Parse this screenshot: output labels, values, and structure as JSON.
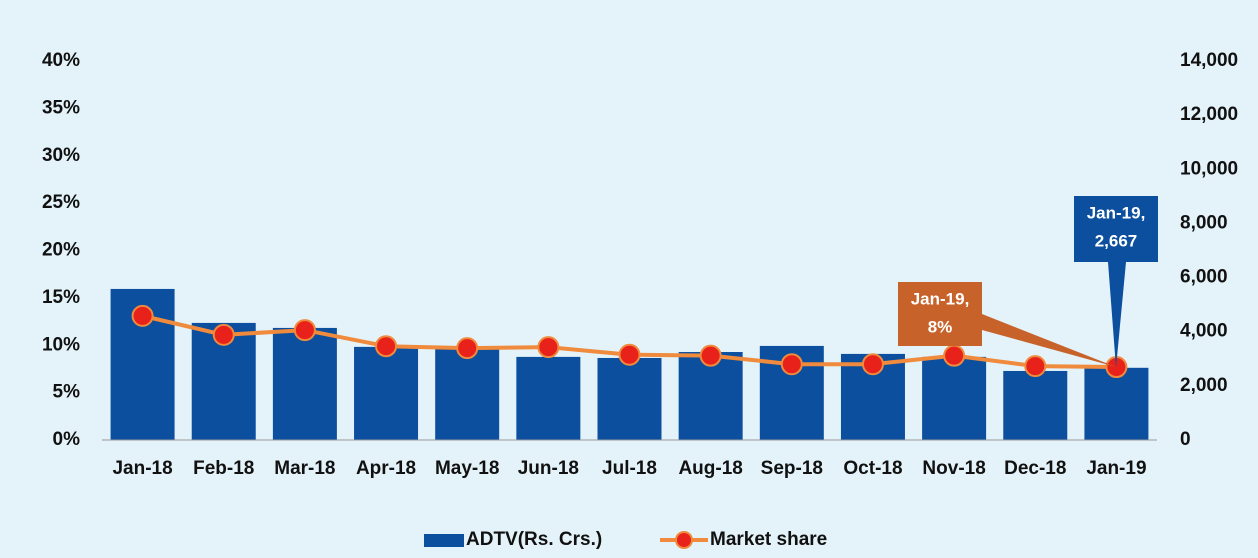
{
  "chart_data": {
    "type": "bar_line",
    "categories": [
      "Jan-18",
      "Feb-18",
      "Mar-18",
      "Apr-18",
      "May-18",
      "Jun-18",
      "Jul-18",
      "Aug-18",
      "Sep-18",
      "Oct-18",
      "Nov-18",
      "Dec-18",
      "Jan-19"
    ],
    "series": [
      {
        "name": "ADTV(Rs. Crs.)",
        "type": "bar",
        "axis": "y2",
        "color": "#0b4f9e",
        "values": [
          5580,
          4325,
          4140,
          3440,
          3400,
          3070,
          3030,
          3250,
          3475,
          3180,
          3070,
          2550,
          2667
        ]
      },
      {
        "name": "Market share",
        "type": "line",
        "axis": "y",
        "color": "#f08a3c",
        "marker_color": "#e8221b",
        "values": [
          13.1,
          11.1,
          11.6,
          9.9,
          9.7,
          9.8,
          9.0,
          8.9,
          8.0,
          8.0,
          8.9,
          7.8,
          7.7
        ]
      }
    ],
    "ylim": [
      0,
      40
    ],
    "yticks": [
      {
        "value": 0,
        "label": "0%"
      },
      {
        "value": 5,
        "label": "5%"
      },
      {
        "value": 10,
        "label": "10%"
      },
      {
        "value": 15,
        "label": "15%"
      },
      {
        "value": 20,
        "label": "20%"
      },
      {
        "value": 25,
        "label": "25%"
      },
      {
        "value": 30,
        "label": "30%"
      },
      {
        "value": 35,
        "label": "35%"
      },
      {
        "value": 40,
        "label": "40%"
      }
    ],
    "y2lim": [
      0,
      14000
    ],
    "y2ticks": [
      0,
      {
        "value": 2000,
        "label": "2,000"
      },
      {
        "value": 4000,
        "label": "4,000"
      },
      {
        "value": 6000,
        "label": "6,000"
      },
      {
        "value": 8000,
        "label": "8,000"
      },
      {
        "value": 10000,
        "label": "10,000"
      },
      {
        "value": 12000,
        "label": "12,000"
      },
      {
        "value": 14000,
        "label": "14,000"
      }
    ],
    "annotations": [
      {
        "lines": [
          "Jan-19,",
          "2,667"
        ],
        "color": "#0b4f9e"
      },
      {
        "lines": [
          "Jan-19,",
          "8%"
        ],
        "color": "#c8622b"
      }
    ],
    "legend": "bottom"
  }
}
